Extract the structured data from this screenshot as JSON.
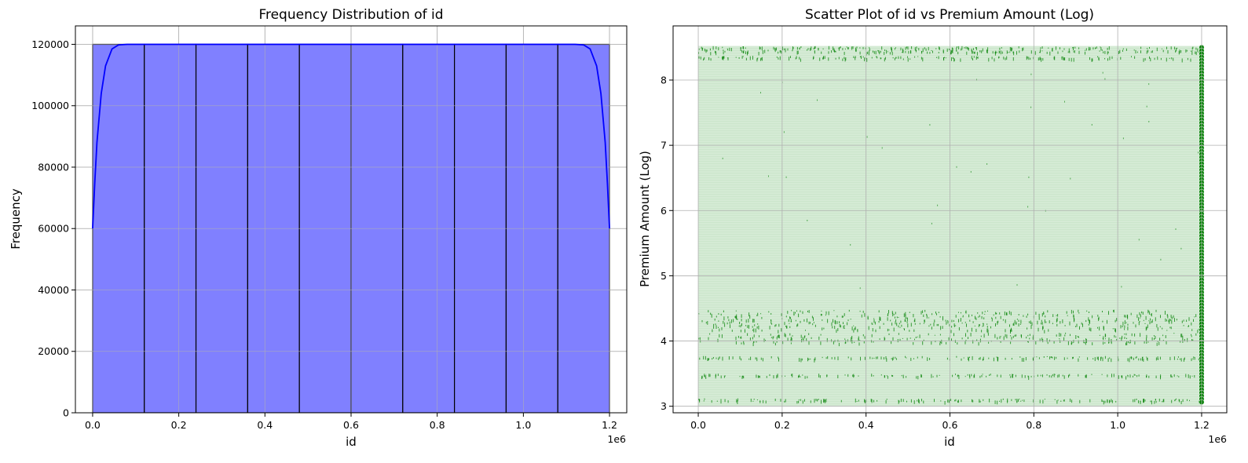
{
  "chart_data": [
    {
      "type": "histogram",
      "title": "Frequency Distribution of id",
      "xlabel": "id",
      "ylabel": "Frequency",
      "x_offset_label": "1e6",
      "xlim": [
        -0.04,
        1.24
      ],
      "ylim": [
        0,
        126000
      ],
      "x_tick_values": [
        0.0,
        0.2,
        0.4,
        0.6,
        0.8,
        1.0,
        1.2
      ],
      "x_tick_labels": [
        "0.0",
        "0.2",
        "0.4",
        "0.6",
        "0.8",
        "1.0",
        "1.2"
      ],
      "y_tick_values": [
        0,
        20000,
        40000,
        60000,
        80000,
        100000,
        120000
      ],
      "y_tick_labels": [
        "0",
        "20000",
        "40000",
        "60000",
        "80000",
        "100000",
        "120000"
      ],
      "grid": true,
      "bar_color": "#8080ff",
      "kde_color": "#0000ff",
      "bin_edges": [
        0.0,
        0.12,
        0.24,
        0.36,
        0.48,
        0.6,
        0.72,
        0.84,
        0.96,
        1.08,
        1.2
      ],
      "counts": [
        120000,
        120000,
        120000,
        120000,
        120000,
        120000,
        120000,
        120000,
        120000,
        120000
      ],
      "kde": {
        "x": [
          0.0,
          0.005,
          0.01,
          0.02,
          0.03,
          0.045,
          0.06,
          0.08,
          0.1,
          0.6,
          1.1,
          1.12,
          1.14,
          1.155,
          1.17,
          1.18,
          1.19,
          1.195,
          1.2
        ],
        "y": [
          60000,
          75000,
          88000,
          104000,
          113000,
          118500,
          119800,
          120000,
          120000,
          120000,
          120000,
          120000,
          119800,
          118500,
          113000,
          104000,
          88000,
          75000,
          60000
        ]
      }
    },
    {
      "type": "scatter",
      "title": "Scatter Plot of id vs Premium Amount (Log)",
      "xlabel": "id",
      "ylabel": "Premium Amount (Log)",
      "x_offset_label": "1e6",
      "xlim": [
        -0.06,
        1.26
      ],
      "ylim": [
        2.9,
        8.83
      ],
      "x_tick_values": [
        0.0,
        0.2,
        0.4,
        0.6,
        0.8,
        1.0,
        1.2
      ],
      "x_tick_labels": [
        "0.0",
        "0.2",
        "0.4",
        "0.6",
        "0.8",
        "1.0",
        "1.2"
      ],
      "y_tick_values": [
        3,
        4,
        5,
        6,
        7,
        8
      ],
      "y_tick_labels": [
        "3",
        "4",
        "5",
        "6",
        "7",
        "8"
      ],
      "grid": true,
      "point_color": "#008000",
      "x_range": [
        0.0,
        1.2
      ],
      "y_range": [
        3.0,
        8.52
      ],
      "dense_y_bands": [
        3.1,
        3.48,
        3.75,
        4.05,
        4.25,
        4.4,
        8.35,
        8.45,
        8.5
      ],
      "edge_column_x": 1.2,
      "edge_column_y_range": [
        3.05,
        8.5
      ]
    }
  ]
}
